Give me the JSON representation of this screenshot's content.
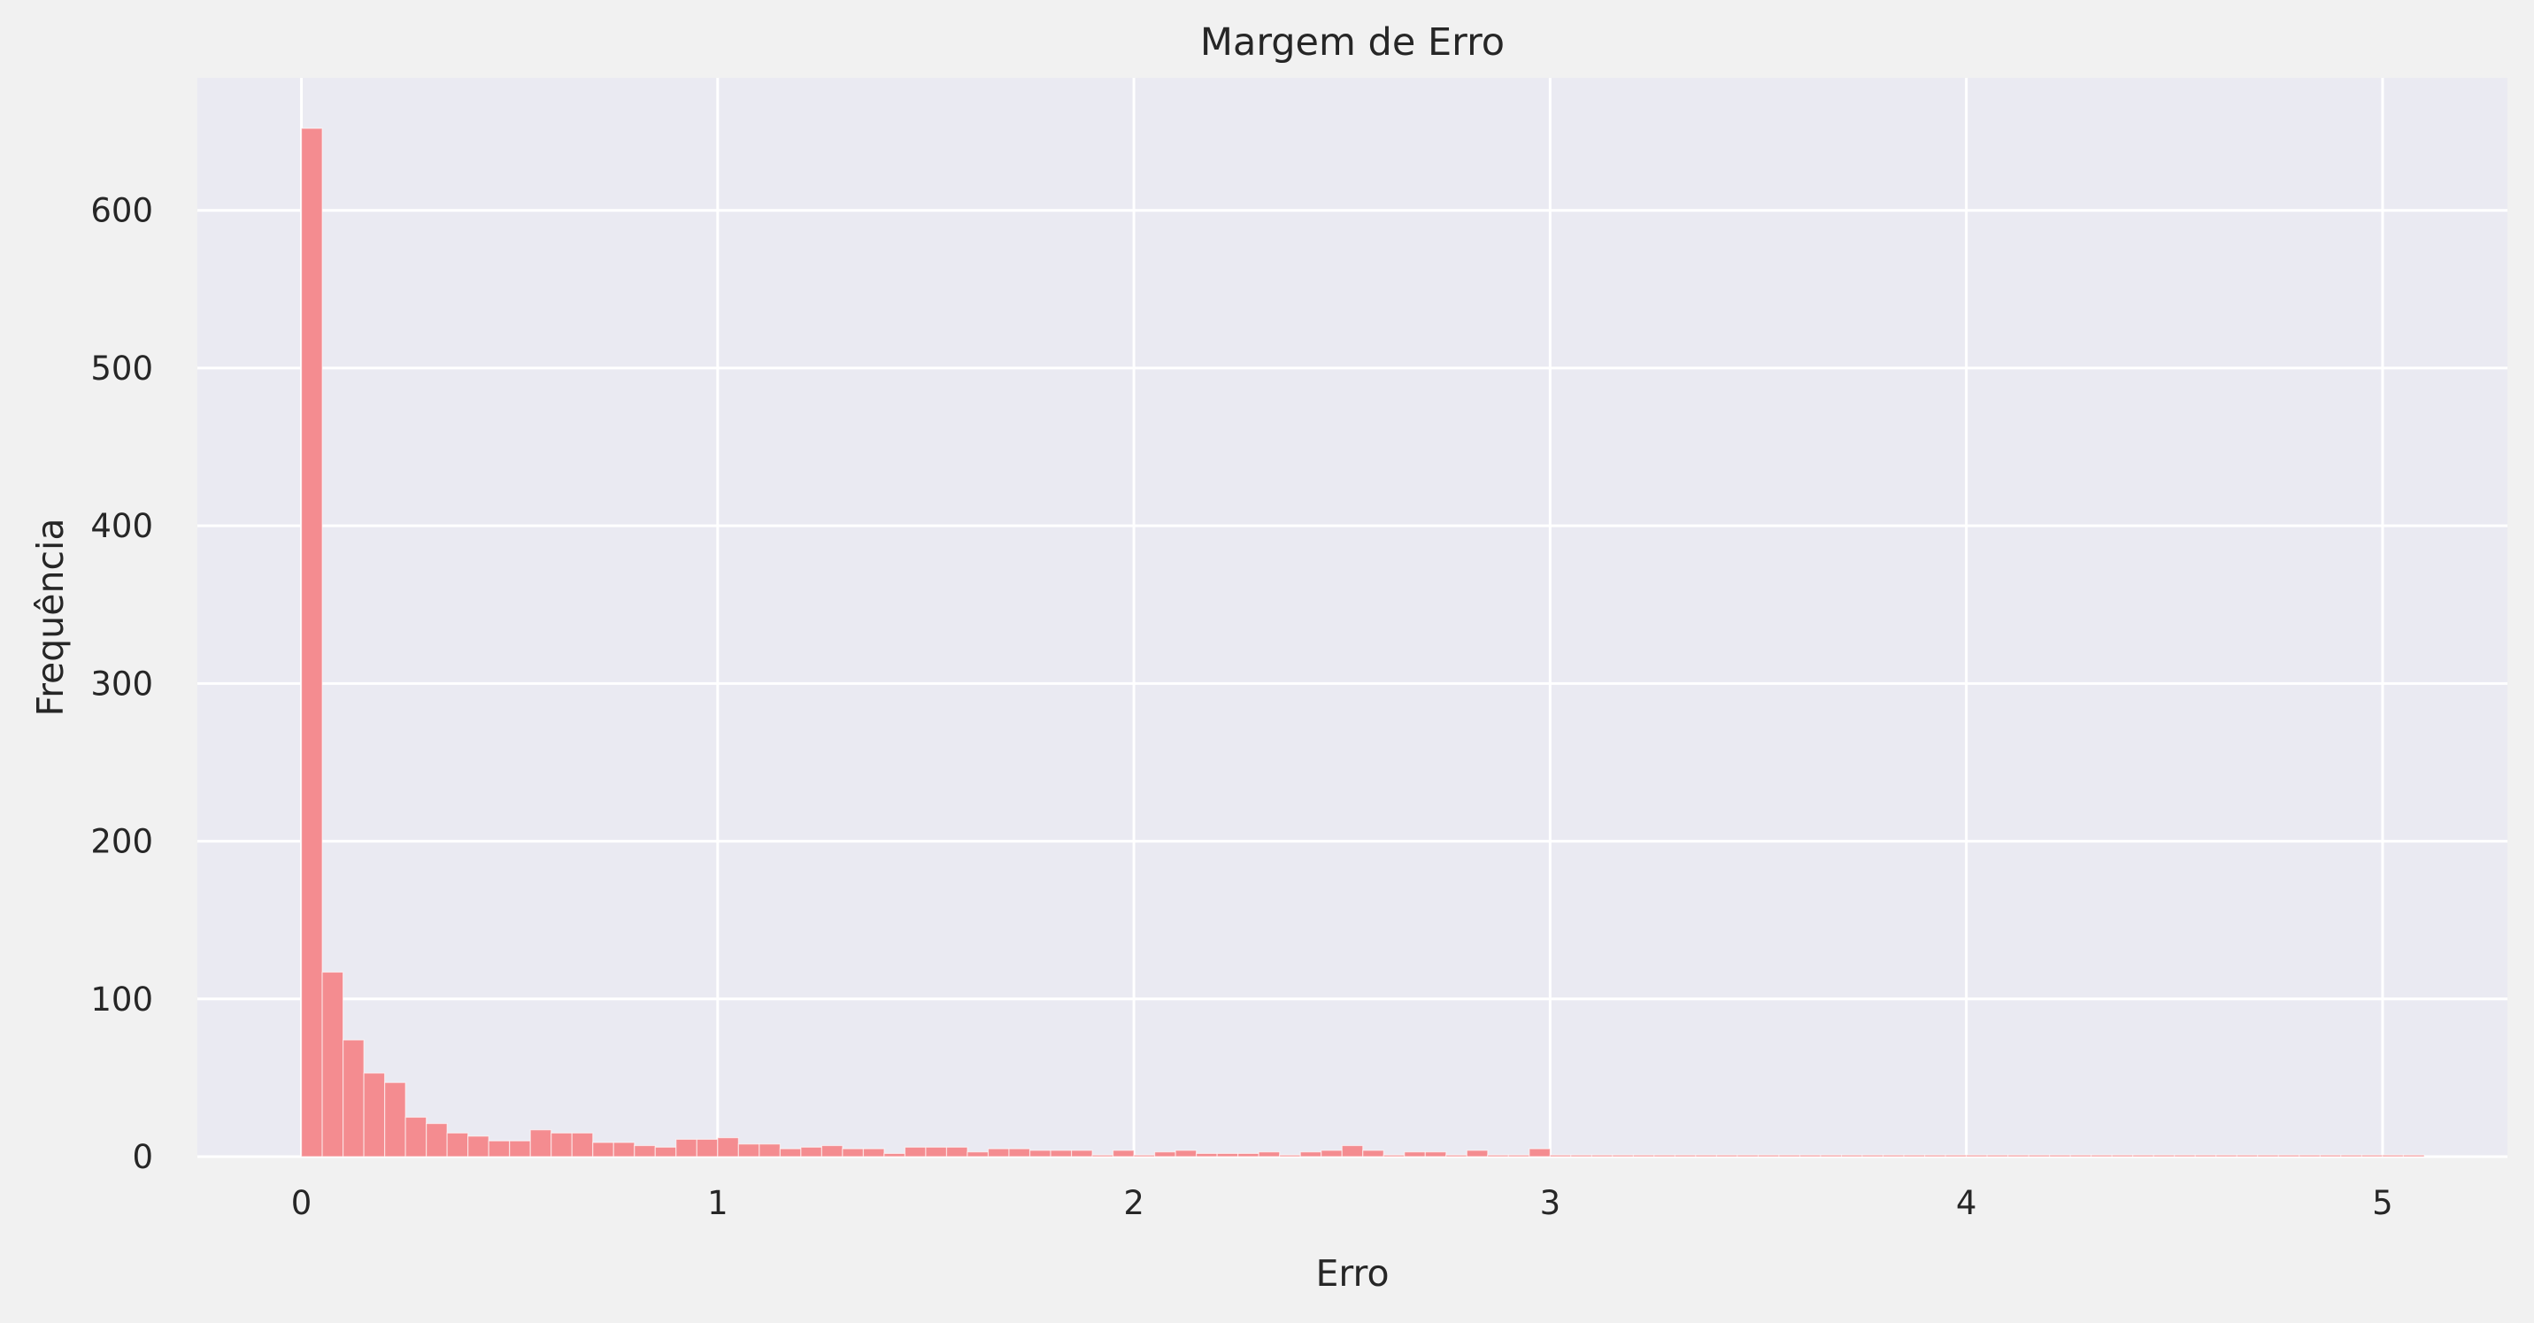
{
  "chart_data": {
    "type": "bar",
    "title": "Margem de Erro",
    "xlabel": "Erro",
    "ylabel": "Frequência",
    "xlim": [
      -0.25,
      5.3
    ],
    "ylim": [
      0,
      684
    ],
    "xticks": [
      0,
      1,
      2,
      3,
      4,
      5
    ],
    "yticks": [
      0,
      100,
      200,
      300,
      400,
      500,
      600
    ],
    "grid": true,
    "bin_width": 0.05,
    "bin_start": 0.0,
    "values": [
      652,
      117,
      74,
      53,
      47,
      25,
      21,
      15,
      13,
      10,
      10,
      17,
      15,
      15,
      9,
      9,
      7,
      6,
      11,
      11,
      12,
      8,
      8,
      5,
      6,
      7,
      5,
      5,
      2,
      6,
      6,
      6,
      3,
      5,
      5,
      4,
      4,
      4,
      1,
      4,
      1,
      3,
      4,
      2,
      2,
      2,
      3,
      1,
      3,
      4,
      7,
      4,
      1,
      3,
      3,
      1,
      4,
      1,
      1,
      5,
      1,
      1,
      1,
      1,
      1,
      1,
      1,
      1,
      1,
      1,
      1,
      1,
      1,
      1,
      1,
      1,
      1,
      1,
      1,
      1,
      1,
      1,
      1,
      1,
      1,
      1,
      1,
      1,
      1,
      1,
      1,
      1,
      1,
      1,
      1,
      1,
      1,
      1,
      1,
      1,
      1,
      1
    ],
    "bar_color": "#f48c90",
    "plot_background": "#eaeaf2",
    "figure_background": "#f1f1f1",
    "grid_color": "#ffffff"
  }
}
